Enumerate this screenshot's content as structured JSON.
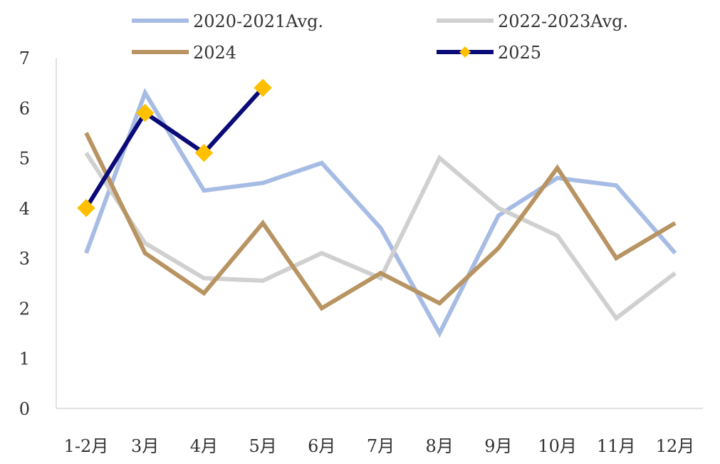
{
  "chart_data": {
    "type": "line",
    "title": "",
    "xlabel": "",
    "ylabel": "",
    "categories": [
      "1-2月",
      "3月",
      "4月",
      "5月",
      "6月",
      "7月",
      "8月",
      "9月",
      "10月",
      "11月",
      "12月"
    ],
    "ylim": [
      0,
      7
    ],
    "yticks": [
      0,
      1,
      2,
      3,
      4,
      5,
      6,
      7
    ],
    "grid": false,
    "legend_position": "top",
    "series": [
      {
        "name": "2020-2021Avg.",
        "color": "#A7BCE4",
        "marker": "none",
        "values": [
          3.1,
          6.3,
          4.35,
          4.5,
          4.9,
          3.6,
          1.5,
          3.85,
          4.6,
          4.45,
          3.1
        ]
      },
      {
        "name": "2022-2023Avg.",
        "color": "#D0D0D0",
        "marker": "none",
        "values": [
          5.1,
          3.3,
          2.6,
          2.55,
          3.1,
          2.6,
          5.0,
          4.0,
          3.45,
          1.8,
          2.7
        ]
      },
      {
        "name": "2024",
        "color": "#B89462",
        "marker": "none",
        "values": [
          5.5,
          3.1,
          2.3,
          3.7,
          2.0,
          2.7,
          2.1,
          3.2,
          4.8,
          3.0,
          3.7
        ]
      },
      {
        "name": "2025",
        "color": "#0A0A78",
        "marker": "diamond",
        "marker_color": "#FFC000",
        "values": [
          4.0,
          5.9,
          5.1,
          6.4,
          null,
          null,
          null,
          null,
          null,
          null,
          null
        ]
      }
    ]
  }
}
